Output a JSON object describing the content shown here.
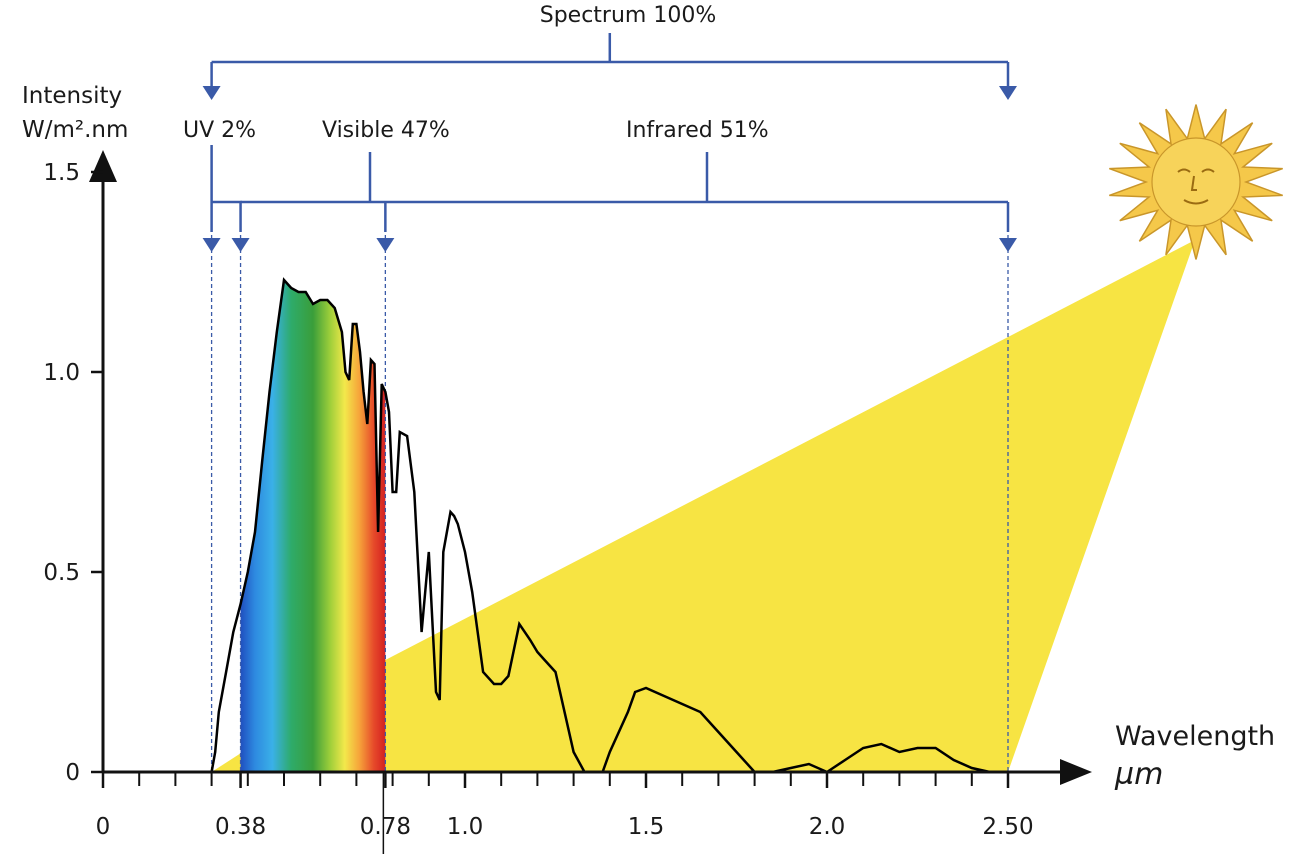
{
  "chart_data": {
    "type": "line",
    "title": "",
    "ylabel_line1": "Intensity",
    "ylabel_line2": "W/m².nm",
    "xlabel": "Wavelength",
    "xunit": "µm",
    "ylim": [
      0,
      1.5
    ],
    "xlim": [
      0,
      2.5
    ],
    "y_ticks": [
      {
        "value": 0,
        "label": "0"
      },
      {
        "value": 0.5,
        "label": "0.5"
      },
      {
        "value": 1.0,
        "label": "1.0"
      },
      {
        "value": 1.5,
        "label": "1.5"
      }
    ],
    "x_tick_labels": [
      {
        "value": 0,
        "label": "0"
      },
      {
        "value": 0.38,
        "label": "0.38"
      },
      {
        "value": 0.78,
        "label": "0.78"
      },
      {
        "value": 1.0,
        "label": "1.0"
      },
      {
        "value": 1.5,
        "label": "1.5"
      },
      {
        "value": 2.0,
        "label": "2.0"
      },
      {
        "value": 2.5,
        "label": "2.50"
      }
    ],
    "x_minor_ticks": [
      0.1,
      0.2,
      0.3,
      0.4,
      0.5,
      0.6,
      0.7,
      0.8,
      0.9,
      1.1,
      1.2,
      1.3,
      1.4,
      1.6,
      1.7,
      1.8,
      1.9,
      2.1,
      2.2,
      2.3,
      2.4
    ],
    "series": [
      {
        "x": [
          0.3,
          0.31,
          0.32,
          0.34,
          0.36,
          0.38,
          0.4,
          0.42,
          0.44,
          0.46,
          0.48,
          0.5,
          0.52,
          0.54,
          0.56,
          0.58,
          0.6,
          0.62,
          0.64,
          0.66,
          0.67,
          0.68,
          0.69,
          0.7,
          0.71,
          0.72,
          0.73,
          0.74,
          0.75,
          0.76,
          0.77,
          0.78,
          0.79,
          0.8,
          0.81,
          0.82,
          0.84,
          0.86,
          0.88,
          0.9,
          0.92,
          0.93,
          0.94,
          0.95,
          0.96,
          0.97,
          0.98,
          1.0,
          1.02,
          1.05,
          1.08,
          1.1,
          1.12,
          1.15,
          1.18,
          1.2,
          1.22,
          1.25,
          1.3,
          1.33,
          1.35,
          1.38,
          1.4,
          1.45,
          1.47,
          1.5,
          1.55,
          1.6,
          1.65,
          1.7,
          1.75,
          1.8,
          1.85,
          1.9,
          1.95,
          2.0,
          2.05,
          2.1,
          2.15,
          2.2,
          2.25,
          2.3,
          2.35,
          2.4,
          2.45
        ],
        "y": [
          0.0,
          0.05,
          0.15,
          0.25,
          0.35,
          0.42,
          0.5,
          0.6,
          0.78,
          0.95,
          1.1,
          1.23,
          1.21,
          1.2,
          1.2,
          1.17,
          1.18,
          1.18,
          1.16,
          1.1,
          1.0,
          0.98,
          1.12,
          1.12,
          1.05,
          0.95,
          0.87,
          1.03,
          1.02,
          0.6,
          0.97,
          0.95,
          0.9,
          0.7,
          0.7,
          0.85,
          0.84,
          0.7,
          0.35,
          0.55,
          0.2,
          0.18,
          0.55,
          0.6,
          0.65,
          0.64,
          0.62,
          0.55,
          0.45,
          0.25,
          0.22,
          0.22,
          0.24,
          0.37,
          0.33,
          0.3,
          0.28,
          0.25,
          0.05,
          0.0,
          0.0,
          0.0,
          0.05,
          0.15,
          0.2,
          0.21,
          0.19,
          0.17,
          0.15,
          0.1,
          0.05,
          0.0,
          0.0,
          0.01,
          0.02,
          0.0,
          0.03,
          0.06,
          0.07,
          0.05,
          0.06,
          0.06,
          0.03,
          0.01,
          0.0
        ]
      }
    ],
    "bands": [
      {
        "label": "UV 2%",
        "from": 0.3,
        "to": 0.38
      },
      {
        "label": "Visible 47%",
        "from": 0.38,
        "to": 0.78
      },
      {
        "label": "Infrared 51%",
        "from": 0.78,
        "to": 2.5
      }
    ],
    "spectrum_label": "Spectrum 100%",
    "spectrum_from": 0.3,
    "spectrum_to": 2.5,
    "colors": {
      "bracket": "#3a5aa8",
      "sunbeam": "#f7e443",
      "sun": "#f5c84a",
      "curve": "#000000",
      "axis": "#111111"
    },
    "icons": [
      "sun-icon"
    ]
  }
}
